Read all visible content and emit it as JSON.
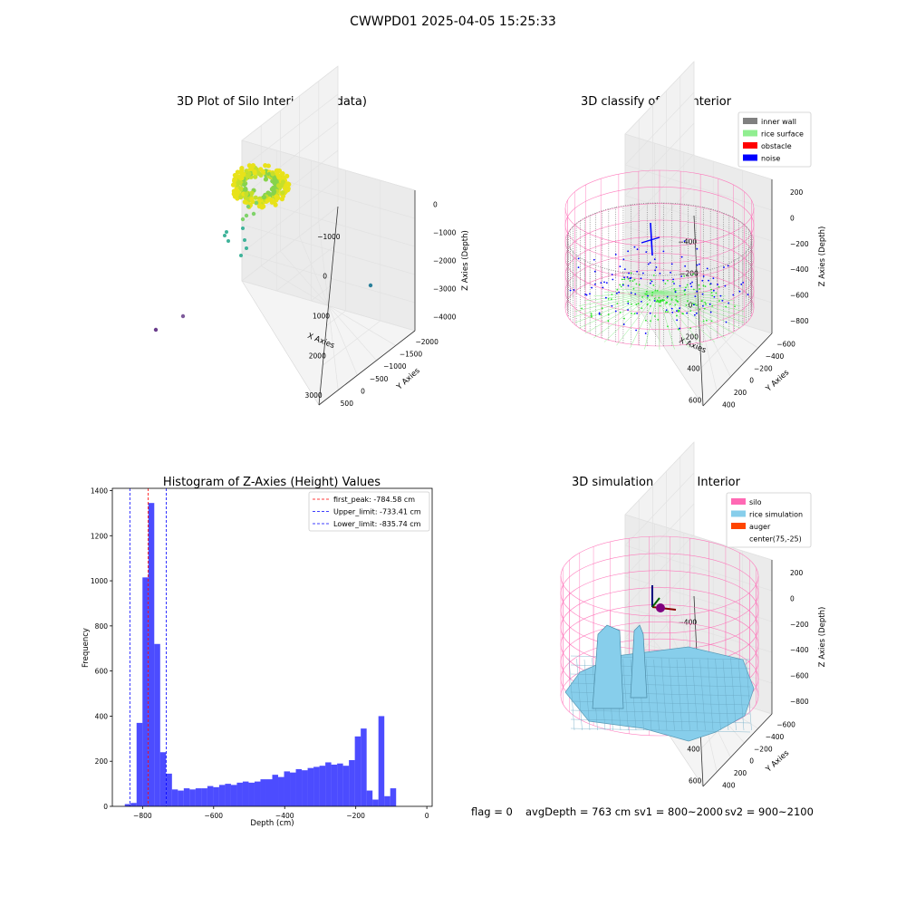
{
  "figure": {
    "suptitle": "CWWPD01 2025-04-05 15:25:33",
    "footer": {
      "flag": "flag = 0",
      "avg": "avgDepth = 763 cm",
      "sv1": "sv1 = 800~2000",
      "sv2": "sv2 = 900~2100"
    }
  },
  "colors": {
    "inner_wall": "#808080",
    "rice_surface": "#90ee90",
    "obstacle": "#ff0000",
    "noise": "#0000ff",
    "silo": "#ff69b4",
    "rice_simulation": "#87ceeb",
    "auger": "#ff4500",
    "hist_bar": "#0000ff",
    "first_peak_line": "#ff0000",
    "limit_line": "#0000ff"
  },
  "chart_data": [
    {
      "type": "scatter3d",
      "title": "3D Plot of Silo Interior(row data)",
      "xlabel": "X Axies",
      "ylabel": "Y Axies",
      "zlabel": "Z Axies (Depth)",
      "xticks": [
        "−1000",
        "0",
        "1000",
        "2000",
        "3000"
      ],
      "yticks": [
        "500",
        "0",
        "−500",
        "−1000",
        "−1500",
        "−2000"
      ],
      "zticks": [
        "0",
        "−1000",
        "−2000",
        "−3000",
        "−4000"
      ],
      "xlim": [
        -1100,
        3600
      ],
      "ylim": [
        -2000,
        700
      ],
      "zlim": [
        -4600,
        100
      ],
      "outliers": [
        {
          "x": -1100,
          "y": 500,
          "z": -4400
        },
        {
          "x": -700,
          "y": 500,
          "z": -4000
        },
        {
          "x": 3300,
          "y": -1600,
          "z": -4200
        },
        {
          "x": 200,
          "y": 300,
          "z": -2600
        },
        {
          "x": 150,
          "y": 350,
          "z": -2400
        },
        {
          "x": 300,
          "y": 200,
          "z": -2300
        },
        {
          "x": 350,
          "y": 150,
          "z": -2500
        }
      ]
    },
    {
      "type": "scatter3d",
      "title": "3D classify of Silo Interior",
      "xlabel": "X Axies",
      "ylabel": "Y Axies",
      "zlabel": "Z Axies (Depth)",
      "xticks": [
        "−400",
        "−200",
        "0",
        "200",
        "400",
        "600"
      ],
      "yticks": [
        "400",
        "200",
        "0",
        "−200",
        "−400",
        "−600"
      ],
      "zticks": [
        "200",
        "0",
        "−200",
        "−400",
        "−600",
        "−800"
      ],
      "legend": [
        {
          "label": "inner wall",
          "color": "#808080"
        },
        {
          "label": "rice surface",
          "color": "#90ee90"
        },
        {
          "label": "obstacle",
          "color": "#ff0000"
        },
        {
          "label": "noise",
          "color": "#0000ff"
        }
      ],
      "legend_position": "top-right"
    },
    {
      "type": "bar",
      "title": "Histogram of Z-Axies (Height) Values",
      "xlabel": "Depth (cm)",
      "ylabel": "Frequency",
      "xlim": [
        -885,
        15
      ],
      "ylim": [
        0,
        1410
      ],
      "xticks": [
        -800,
        -600,
        -400,
        -200,
        0
      ],
      "xtick_labels": [
        "−800",
        "−600",
        "−400",
        "−200",
        "0"
      ],
      "yticks": [
        0,
        200,
        400,
        600,
        800,
        1000,
        1200,
        1400
      ],
      "bin_start": -850,
      "bin_width": 16.6,
      "values": [
        10,
        15,
        370,
        1015,
        1345,
        720,
        240,
        145,
        75,
        70,
        80,
        75,
        80,
        80,
        90,
        85,
        95,
        100,
        95,
        105,
        110,
        105,
        110,
        120,
        120,
        140,
        130,
        155,
        150,
        165,
        160,
        170,
        175,
        180,
        195,
        185,
        190,
        180,
        205,
        310,
        345,
        70,
        30,
        400,
        45,
        80
      ],
      "lines": [
        {
          "x": -784.58,
          "label": "first_peak: -784.58 cm",
          "color": "#ff0000"
        },
        {
          "x": -733.41,
          "label": "Upper_limit: -733.41 cm",
          "color": "#0000ff"
        },
        {
          "x": -835.74,
          "label": "Lower_limit: -835.74 cm",
          "color": "#0000ff"
        }
      ],
      "legend_position": "top-right"
    },
    {
      "type": "surface3d",
      "title": "3D simulation of Silo Interior",
      "xlabel": "X Axies",
      "ylabel": "Y Axies",
      "zlabel": "Z Axies (Depth)",
      "xticks": [
        "−400",
        "−200",
        "0",
        "200",
        "400",
        "600"
      ],
      "yticks": [
        "400",
        "200",
        "0",
        "−200",
        "−400",
        "−600"
      ],
      "zticks": [
        "200",
        "0",
        "−200",
        "−400",
        "−600",
        "−800"
      ],
      "legend": [
        {
          "label": "silo",
          "color": "#ff69b4"
        },
        {
          "label": "rice simulation",
          "color": "#87ceeb"
        },
        {
          "label": "auger",
          "color": "#ff4500"
        },
        {
          "label": "center(75,-25)",
          "color": ""
        }
      ],
      "legend_position": "top-right"
    }
  ]
}
